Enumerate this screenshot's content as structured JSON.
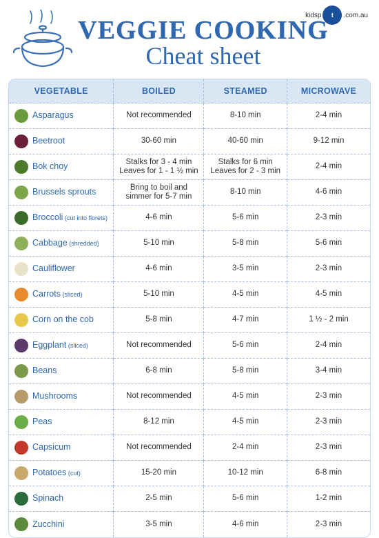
{
  "logo": {
    "brand": "kidsp",
    "orb": "t",
    "suffix": ".com.au"
  },
  "title": "Veggie Cooking",
  "subtitle": "Cheat sheet",
  "columns": [
    "Vegetable",
    "Boiled",
    "Steamed",
    "Microwave"
  ],
  "icon_colors": {
    "asparagus": "#6a9a3a",
    "beetroot": "#6b1f3a",
    "bokchoy": "#4b7a2a",
    "brussels": "#7ca648",
    "broccoli": "#3a6b2a",
    "cabbage": "#8fb05a",
    "cauliflower": "#e8e2c8",
    "carrots": "#e88b2e",
    "corn": "#e8c84a",
    "eggplant": "#5a3a6b",
    "beans": "#7a9a4a",
    "mushrooms": "#b89a6a",
    "peas": "#6aae4a",
    "capsicum": "#c43a2a",
    "potatoes": "#c9a86a",
    "spinach": "#2a6b3a",
    "zucchini": "#5a8a3a"
  },
  "rows": [
    {
      "key": "asparagus",
      "name": "Asparagus",
      "sub": "",
      "boiled": "Not recommended",
      "steamed": "8-10 min",
      "microwave": "2-4 min"
    },
    {
      "key": "beetroot",
      "name": "Beetroot",
      "sub": "",
      "boiled": "30-60 min",
      "steamed": "40-60 min",
      "microwave": "9-12 min"
    },
    {
      "key": "bokchoy",
      "name": "Bok choy",
      "sub": "",
      "boiled": "Stalks for 3 - 4 min\nLeaves for 1 - 1 ½ min",
      "steamed": "Stalks for 6 min\nLeaves for 2 - 3 min",
      "microwave": "2-4 min"
    },
    {
      "key": "brussels",
      "name": "Brussels sprouts",
      "sub": "",
      "boiled": "Bring to boil and\nsimmer for 5-7 min",
      "steamed": "8-10 min",
      "microwave": "4-6 min"
    },
    {
      "key": "broccoli",
      "name": "Broccoli",
      "sub": "(cut into florets)",
      "boiled": "4-6 min",
      "steamed": "5-6 min",
      "microwave": "2-3 min"
    },
    {
      "key": "cabbage",
      "name": "Cabbage",
      "sub": "(shredded)",
      "boiled": "5-10 min",
      "steamed": "5-8 min",
      "microwave": "5-6 min"
    },
    {
      "key": "cauliflower",
      "name": "Cauliflower",
      "sub": "",
      "boiled": "4-6 min",
      "steamed": "3-5 min",
      "microwave": "2-3 min"
    },
    {
      "key": "carrots",
      "name": "Carrots",
      "sub": "(sliced)",
      "boiled": "5-10 min",
      "steamed": "4-5 min",
      "microwave": "4-5 min"
    },
    {
      "key": "corn",
      "name": "Corn on the cob",
      "sub": "",
      "boiled": "5-8 min",
      "steamed": "4-7 min",
      "microwave": "1 ½ - 2 min"
    },
    {
      "key": "eggplant",
      "name": "Eggplant",
      "sub": "(sliced)",
      "boiled": "Not recommended",
      "steamed": "5-6 min",
      "microwave": "2-4 min"
    },
    {
      "key": "beans",
      "name": "Beans",
      "sub": "",
      "boiled": "6-8 min",
      "steamed": "5-8 min",
      "microwave": "3-4 min"
    },
    {
      "key": "mushrooms",
      "name": "Mushrooms",
      "sub": "",
      "boiled": "Not recommended",
      "steamed": "4-5 min",
      "microwave": "2-3 min"
    },
    {
      "key": "peas",
      "name": "Peas",
      "sub": "",
      "boiled": "8-12 min",
      "steamed": "4-5 min",
      "microwave": "2-3 min"
    },
    {
      "key": "capsicum",
      "name": "Capsicum",
      "sub": "",
      "boiled": "Not recommended",
      "steamed": "2-4 min",
      "microwave": "2-3 min"
    },
    {
      "key": "potatoes",
      "name": "Potatoes",
      "sub": "(cut)",
      "boiled": "15-20 min",
      "steamed": "10-12 min",
      "microwave": "6-8 min"
    },
    {
      "key": "spinach",
      "name": "Spinach",
      "sub": "",
      "boiled": "2-5 min",
      "steamed": "5-6 min",
      "microwave": "1-2 min"
    },
    {
      "key": "zucchini",
      "name": "Zucchini",
      "sub": "",
      "boiled": "3-5 min",
      "steamed": "4-6 min",
      "microwave": "2-3 min"
    }
  ],
  "theme": {
    "primary": "#2f68b0",
    "header_bg": "#d9e7f5",
    "border": "#a8bed8",
    "background": "#ffffff"
  }
}
